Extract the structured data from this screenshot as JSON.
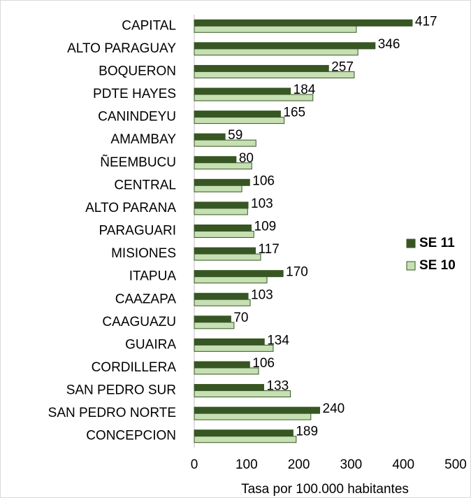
{
  "chart_data": {
    "type": "hbar",
    "categories": [
      "CAPITAL",
      "ALTO PARAGUAY",
      "BOQUERON",
      "PDTE HAYES",
      "CANINDEYU",
      "AMAMBAY",
      "ÑEEMBUCU",
      "CENTRAL",
      "ALTO PARANA",
      "PARAGUARI",
      "MISIONES",
      "ITAPUA",
      "CAAZAPA",
      "CAAGUAZU",
      "GUAIRA",
      "CORDILLERA",
      "SAN PEDRO SUR",
      "SAN PEDRO NORTE",
      "CONCEPCION"
    ],
    "series": [
      {
        "name": "SE 11",
        "color": "#375623",
        "values": [
          417,
          346,
          257,
          184,
          165,
          59,
          80,
          106,
          103,
          109,
          117,
          170,
          103,
          70,
          134,
          106,
          133,
          240,
          189
        ]
      },
      {
        "name": "SE 10",
        "color": "#c6e0b4",
        "values": [
          310,
          313,
          306,
          227,
          172,
          118,
          110,
          91,
          102,
          114,
          127,
          139,
          107,
          76,
          151,
          123,
          184,
          223,
          195
        ]
      }
    ],
    "x_label": "Tasa por 100.000 habitantes",
    "xlim": [
      0,
      500
    ],
    "xticks": [
      0,
      100,
      200,
      300,
      400,
      500
    ],
    "legend": "right"
  }
}
